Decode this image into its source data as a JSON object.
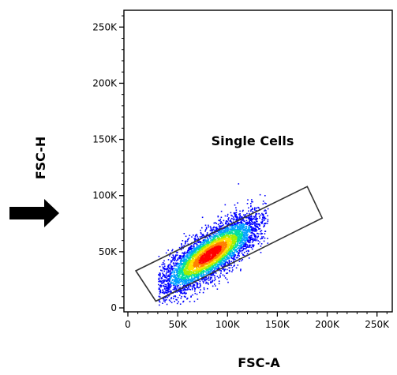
{
  "chart_data": {
    "type": "scatter",
    "subtype": "flow-cytometry-density-plot",
    "xlabel": "FSC-A",
    "ylabel": "FSC-H",
    "xlim": [
      0,
      262144
    ],
    "ylim": [
      0,
      262144
    ],
    "x_ticks": [
      {
        "value": 0,
        "label": "0"
      },
      {
        "value": 50000,
        "label": "50K"
      },
      {
        "value": 100000,
        "label": "100K"
      },
      {
        "value": 150000,
        "label": "150K"
      },
      {
        "value": 200000,
        "label": "200K"
      },
      {
        "value": 250000,
        "label": "250K"
      }
    ],
    "y_ticks": [
      {
        "value": 0,
        "label": "0"
      },
      {
        "value": 50000,
        "label": "50K"
      },
      {
        "value": 100000,
        "label": "100K"
      },
      {
        "value": 150000,
        "label": "150K"
      },
      {
        "value": 200000,
        "label": "200K"
      },
      {
        "value": 250000,
        "label": "250K"
      }
    ],
    "population": {
      "center": [
        82000,
        48000
      ],
      "major_axis_slope": 0.62,
      "x_range": [
        30000,
        140000
      ],
      "y_max": 120000,
      "density_colormap": [
        "#0000ff",
        "#00a0ff",
        "#00e0a0",
        "#a0f000",
        "#ffe000",
        "#ff8000",
        "#ff0000"
      ]
    },
    "gate": {
      "name": "Single Cells",
      "shape": "polygon",
      "vertices": [
        [
          8000,
          33000
        ],
        [
          28000,
          6000
        ],
        [
          195000,
          80000
        ],
        [
          180000,
          108000
        ]
      ]
    },
    "annotation_arrow": {
      "points_to": "ylabel",
      "color": "#000000"
    },
    "grid": false
  }
}
